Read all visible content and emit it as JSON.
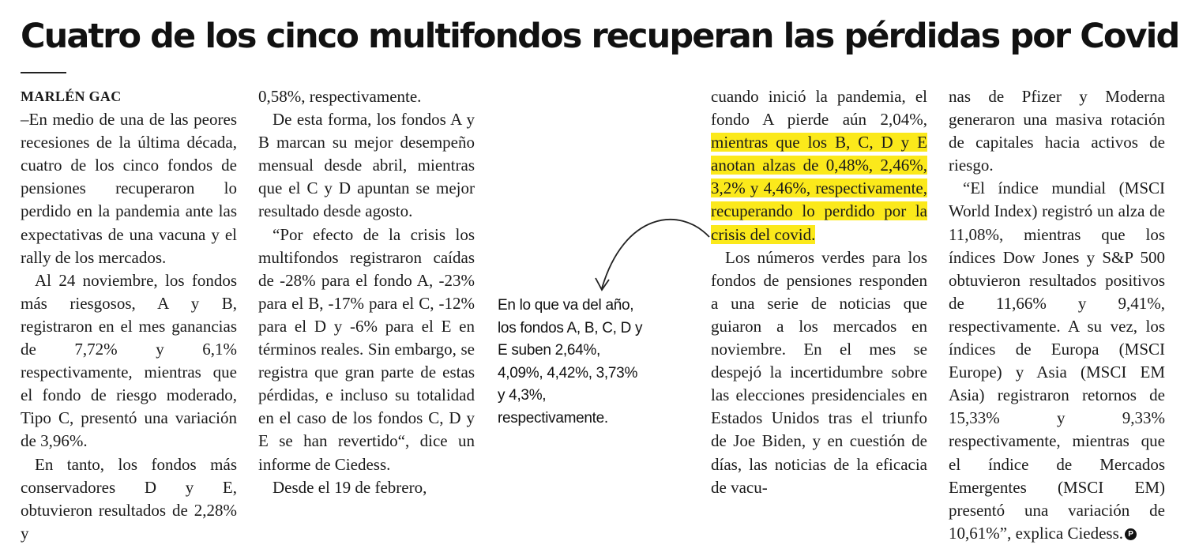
{
  "article": {
    "headline": "Cuatro de los cinco multifondos recuperan las pérdidas por Covid",
    "byline": "MARLÉN GAC",
    "col1": [
      "–En medio de una de las peores recesiones de la última década, cuatro de los cinco fondos de pensiones recuperaron lo perdido en la pandemia ante las expectativas de una vacuna y el rally de los mercados.",
      "Al 24 noviembre, los fondos más riesgosos, A y B, registraron en el mes ganancias de 7,72% y 6,1% respectivamente, mientras que el fondo de riesgo moderado, Tipo C, presentó una variación de 3,96%.",
      "En tanto, los fondos más conservadores D y E, obtuvieron resultados de 2,28% y"
    ],
    "col2": [
      "0,58%, respectivamente.",
      "De esta forma, los fondos A y B marcan su mejor desempeño mensual desde abril, mientras que el C y D apuntan se mejor resultado desde agosto.",
      "“Por efecto de la crisis los multifondos registraron caídas de -28% para el fondo A, -23% para el B, -17% para el C, -12% para el D y -6% para el E en términos reales. Sin embargo, se registra que gran parte de estas pérdidas, e incluso su totalidad en el caso de los fondos C, D y E se han revertido“, dice un informe de Ciedess.",
      "Desde el 19 de febrero,"
    ],
    "col4_intro": "cuando inició la pandemia, el fondo A pierde aún 2,04%,",
    "col4_highlight": "mientras que los B, C, D y E anotan alzas de 0,48%, 2,46%, 3,2% y 4,46%, respectivamente, recuperando lo perdido por la crisis del covid.",
    "col4_p2": "Los números verdes para los fondos de pensiones responden a una serie de noticias que guiaron a los mercados en noviembre. En el mes se despejó la incertidumbre sobre las elecciones presidenciales en Estados Unidos tras el triunfo de Joe Biden, y en cuestión de días, las noticias de la eficacia de vacu-",
    "col5_p1": "nas de Pfizer y Moderna generaron una masiva rotación de capitales hacia activos de riesgo.",
    "col5_p2": "“El índice mundial (MSCI World Index) registró un alza de 11,08%, mientras que los índices Dow Jones y S&P 500 obtuvieron resultados positivos de 11,66% y 9,41%, respectivamente. A su vez, los índices de Europa (MSCI Europe) y Asia (MSCI EM Asia) registraron retornos de 15,33% y 9,33% respectivamente, mientras que el índice de Mercados Emergentes (MSCI EM) presentó una variación de 10,61%”, explica Ciedess.",
    "end_mark": "P"
  },
  "callout": {
    "lines": [
      "En lo que va del año,",
      "los fondos A, B, C, D y",
      "E suben 2,64%,",
      "4,09%, 4,42%, 3,73%",
      "y 4,3%,",
      "respectivamente."
    ]
  },
  "colors": {
    "highlight": "#fbe91b",
    "text": "#1a1a1a"
  }
}
